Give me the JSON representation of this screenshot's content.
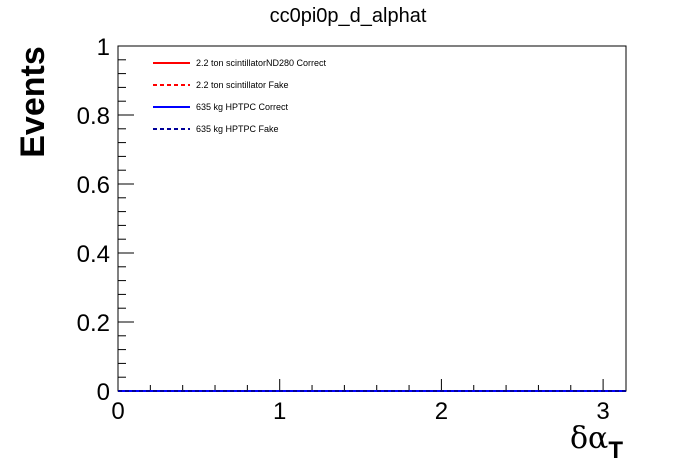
{
  "chart_data": {
    "type": "line",
    "title": "cc0pi0p_d_alphat",
    "xlabel": "δα",
    "xlabel_subscript": "T",
    "ylabel": "Events",
    "xlim": [
      0,
      3.14159
    ],
    "ylim": [
      0,
      1
    ],
    "x_ticks": [
      "0",
      "1",
      "2",
      "3"
    ],
    "y_ticks": [
      "0",
      "0.2",
      "0.4",
      "0.6",
      "0.8",
      "1"
    ],
    "grid": false,
    "legend_position": "top-left",
    "series": [
      {
        "name": "2.2 ton scintillatorND280 Correct",
        "color": "#ff0000",
        "dash": "solid",
        "x": [
          0,
          3.14159
        ],
        "y": [
          0,
          0
        ]
      },
      {
        "name": "2.2 ton scintillator Fake",
        "color": "#ff0000",
        "dash": "dashed",
        "x": [
          0,
          3.14159
        ],
        "y": [
          0,
          0
        ]
      },
      {
        "name": "635 kg HPTPC Correct",
        "color": "#0000ff",
        "dash": "solid",
        "x": [
          0,
          3.14159
        ],
        "y": [
          0,
          0
        ]
      },
      {
        "name": "635 kg HPTPC Fake",
        "color": "#000099",
        "dash": "dashed",
        "x": [
          0,
          3.14159
        ],
        "y": [
          0,
          0
        ]
      }
    ]
  }
}
